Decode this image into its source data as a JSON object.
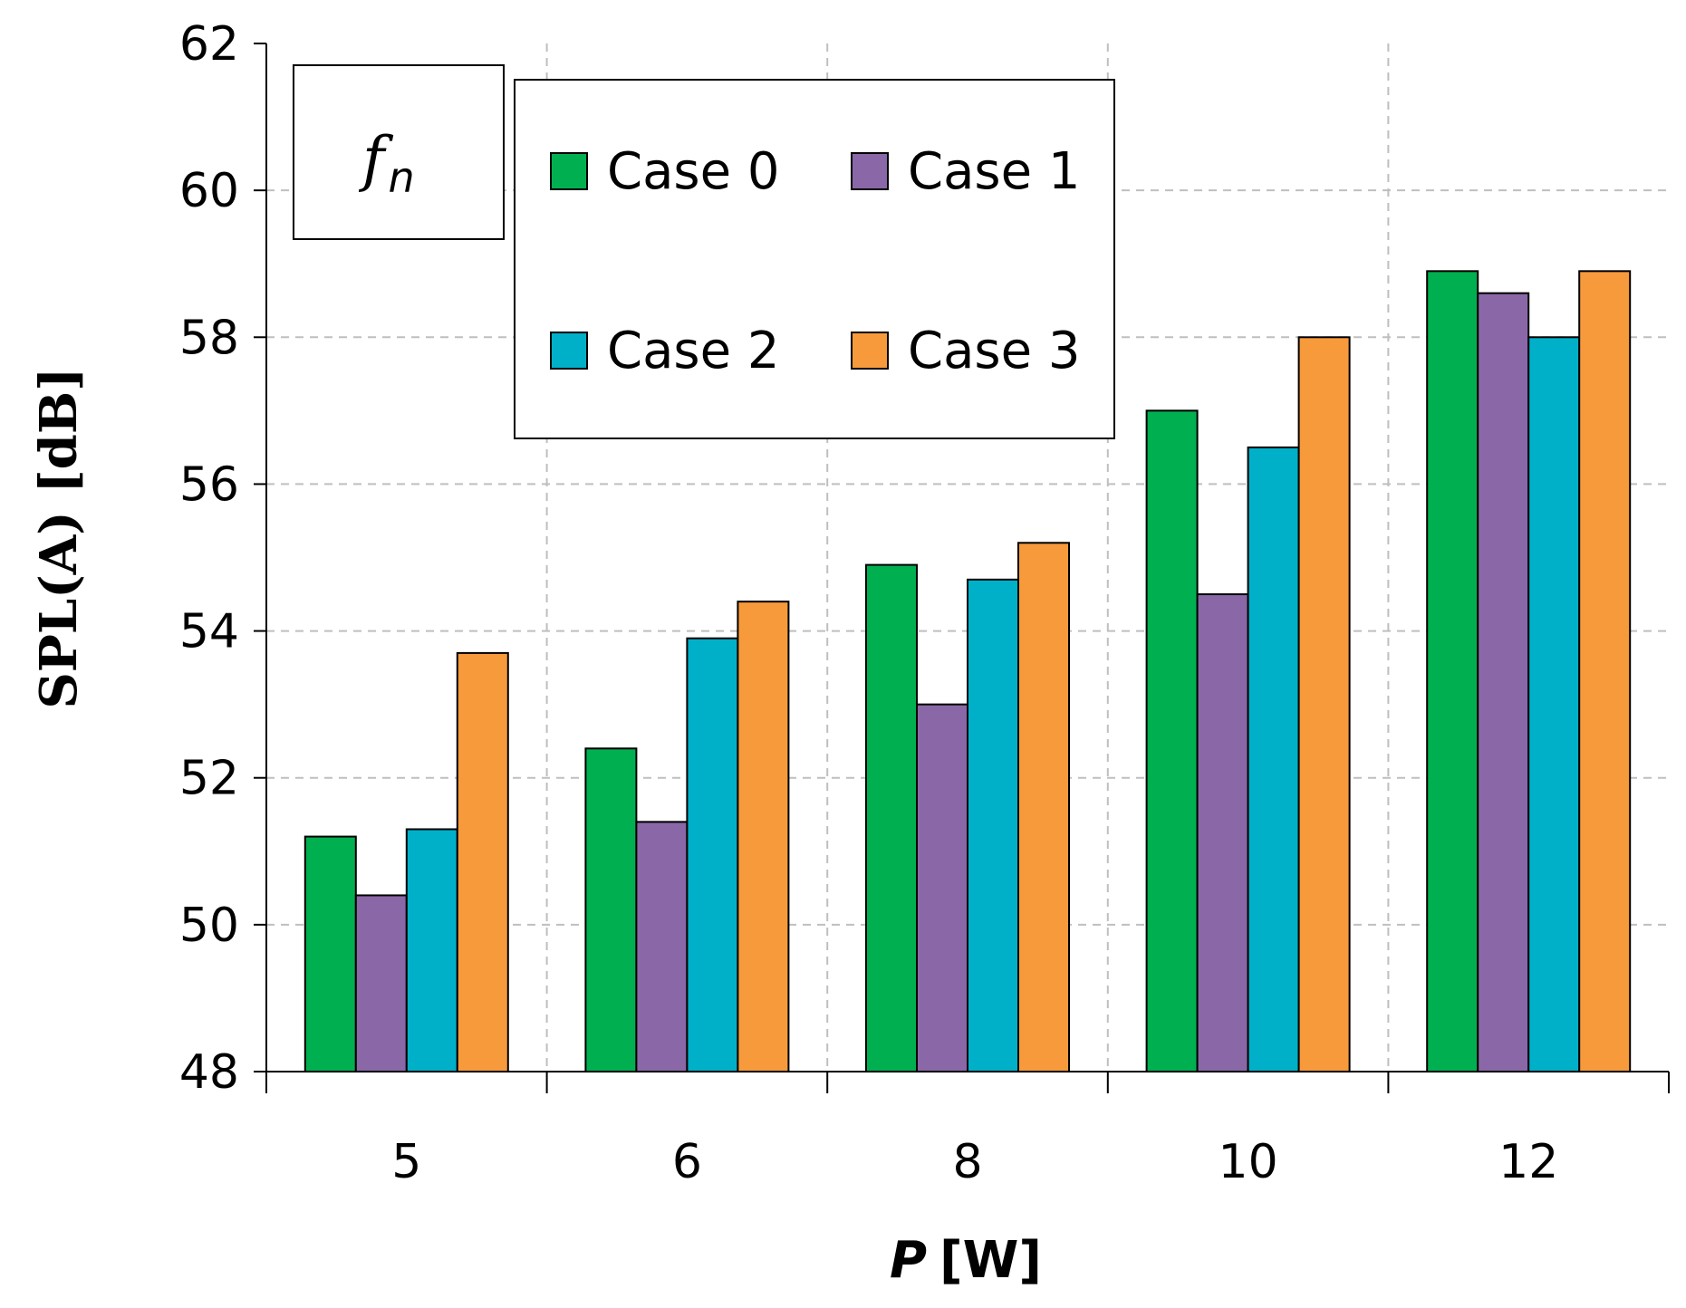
{
  "chart_data": {
    "type": "bar",
    "title": "",
    "annotation": {
      "symbol": "f",
      "subscript": "n"
    },
    "xlabel": {
      "variable": "P",
      "unit": "[W]"
    },
    "ylabel": "SPL(A) [dB]",
    "categories": [
      "5",
      "6",
      "8",
      "10",
      "12"
    ],
    "ylim": [
      48,
      62
    ],
    "yticks": [
      "48",
      "50",
      "52",
      "54",
      "56",
      "58",
      "60",
      "62"
    ],
    "grid": true,
    "legend_position": "top-center",
    "series": [
      {
        "name": "Case 0",
        "color": "#00b050",
        "values": [
          51.2,
          52.4,
          54.9,
          57.0,
          58.9
        ]
      },
      {
        "name": "Case 1",
        "color": "#8a67a6",
        "values": [
          50.4,
          51.4,
          53.0,
          54.5,
          58.6
        ]
      },
      {
        "name": "Case 2",
        "color": "#00b0c8",
        "values": [
          51.3,
          53.9,
          54.7,
          56.5,
          58.0
        ]
      },
      {
        "name": "Case 3",
        "color": "#f79a3c",
        "values": [
          53.7,
          54.4,
          55.2,
          58.0,
          58.9
        ]
      }
    ]
  }
}
